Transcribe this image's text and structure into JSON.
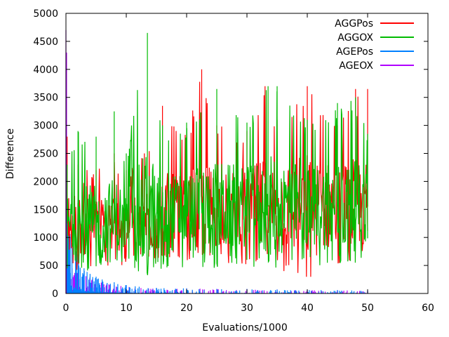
{
  "chart_data": {
    "type": "line",
    "title": "",
    "xlabel": "Evaluations/1000",
    "ylabel": "Difference",
    "xlim": [
      0,
      60
    ],
    "ylim": [
      0,
      5000
    ],
    "x_ticks": [
      0,
      10,
      20,
      30,
      40,
      50,
      60
    ],
    "y_ticks": [
      0,
      500,
      1000,
      1500,
      2000,
      2500,
      3000,
      3500,
      4000,
      4500,
      5000
    ],
    "grid": false,
    "legend_position": "top-right",
    "series": [
      {
        "name": "AGGPos",
        "color": "#ff0000",
        "style": "noisy band (min–max envelope shown by spikes)",
        "x": [
          0.2,
          2,
          5,
          8,
          10,
          13,
          16,
          20,
          22.5,
          25,
          30,
          33,
          35,
          40,
          45,
          48,
          50
        ],
        "mean": [
          1300,
          1200,
          1200,
          1250,
          1300,
          1350,
          1400,
          1450,
          1500,
          1500,
          1550,
          1550,
          1550,
          1550,
          1550,
          1550,
          1550
        ],
        "min": [
          450,
          350,
          400,
          450,
          500,
          550,
          500,
          550,
          550,
          550,
          500,
          500,
          450,
          150,
          350,
          450,
          500
        ],
        "max": [
          2800,
          2300,
          2200,
          2500,
          2200,
          2500,
          3350,
          2800,
          4000,
          3000,
          2900,
          3700,
          3100,
          3700,
          3000,
          3650,
          3650
        ]
      },
      {
        "name": "AGGOX",
        "color": "#00bb00",
        "style": "noisy band (min–max envelope shown by spikes)",
        "x": [
          0.2,
          2,
          5,
          8,
          10,
          13.5,
          16,
          20,
          25,
          30,
          33.5,
          35,
          40,
          45,
          48,
          50
        ],
        "mean": [
          1250,
          1250,
          1250,
          1300,
          1300,
          1400,
          1400,
          1450,
          1500,
          1550,
          1550,
          1550,
          1550,
          1550,
          1550,
          1550
        ],
        "min": [
          300,
          300,
          350,
          400,
          450,
          300,
          400,
          450,
          450,
          500,
          400,
          400,
          450,
          500,
          550,
          600
        ],
        "max": [
          2300,
          2900,
          2800,
          3250,
          2500,
          4650,
          3000,
          3050,
          3650,
          3050,
          3700,
          3700,
          3100,
          3400,
          3500,
          2850
        ]
      },
      {
        "name": "AGEPos",
        "color": "#0080ff",
        "style": "decaying spikes",
        "x": [
          0.2,
          0.5,
          1,
          2,
          3,
          4,
          5,
          6,
          8,
          10,
          15,
          20,
          25,
          30,
          35,
          40,
          45,
          50
        ],
        "values": [
          1600,
          1300,
          900,
          700,
          450,
          350,
          300,
          250,
          200,
          150,
          100,
          90,
          80,
          80,
          70,
          60,
          60,
          50
        ]
      },
      {
        "name": "AGEOX",
        "color": "#b000ff",
        "style": "decaying spikes",
        "x": [
          0,
          0.1,
          0.3,
          0.6,
          1,
          2,
          3,
          4,
          5,
          6,
          8,
          10,
          15,
          20,
          25,
          30,
          35,
          40,
          45,
          50
        ],
        "values": [
          4700,
          4300,
          1000,
          600,
          450,
          400,
          350,
          300,
          250,
          200,
          150,
          120,
          100,
          90,
          80,
          80,
          70,
          60,
          60,
          50
        ]
      }
    ]
  }
}
